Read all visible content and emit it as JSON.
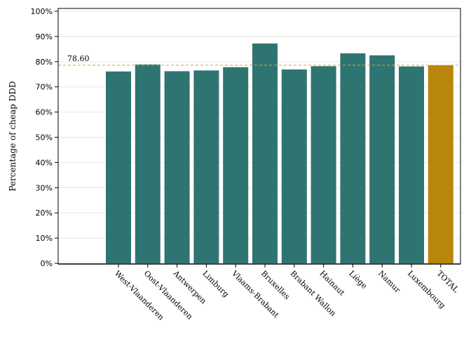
{
  "chart_data": {
    "type": "bar",
    "title": "",
    "xlabel": "",
    "ylabel": "Percentage of cheap DDD",
    "categories": [
      "West-Vlaanderen",
      "Oost-Vlaanderen",
      "Antwerpen",
      "Limburg",
      "Vlaams-Brabant",
      "Bruxelles",
      "Brabant Wallon",
      "Hainaut",
      "Liège",
      "Namur",
      "Luxembourg",
      "TOTAL"
    ],
    "values": [
      76.1,
      78.9,
      76.2,
      76.5,
      77.8,
      87.2,
      76.9,
      78.2,
      83.3,
      82.5,
      78.1,
      78.6
    ],
    "ylim": [
      0,
      100
    ],
    "yticks": [
      "0%",
      "10%",
      "20%",
      "30%",
      "40%",
      "50%",
      "60%",
      "70%",
      "80%",
      "90%",
      "100%"
    ],
    "reference_line": {
      "value": 78.6,
      "label": "78.60",
      "color": "#d4a24a"
    },
    "colors": {
      "bar": "#2e7572",
      "total_bar": "#b8860b",
      "grid": "#e8e8e8"
    },
    "grid": true,
    "legend": "none"
  }
}
